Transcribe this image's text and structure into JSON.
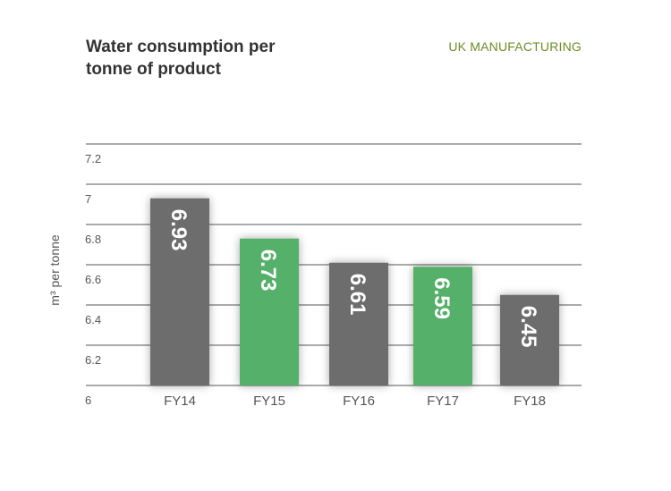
{
  "title_line1": "Water consumption per",
  "title_line2": "tonne of product",
  "subtitle": "UK MANUFACTURING",
  "colors": {
    "dark": "#6d6d6d",
    "green": "#55b06a",
    "grid": "#555555",
    "accent": "#6b8e23"
  },
  "chart_data": {
    "type": "bar",
    "title": "Water consumption per tonne of product",
    "subtitle": "UK MANUFACTURING",
    "ylabel": "m³ per tonne",
    "xlabel": "",
    "ylim": [
      6,
      7.2
    ],
    "yticks": [
      "6",
      "6.2",
      "6.4",
      "6.6",
      "6.8",
      "7",
      "7.2"
    ],
    "categories": [
      "FY14",
      "FY15",
      "FY16",
      "FY17",
      "FY18"
    ],
    "values": [
      6.93,
      6.73,
      6.61,
      6.59,
      6.45
    ],
    "bar_colors": [
      "#6d6d6d",
      "#55b06a",
      "#6d6d6d",
      "#55b06a",
      "#6d6d6d"
    ],
    "grid": true,
    "legend": "none"
  }
}
